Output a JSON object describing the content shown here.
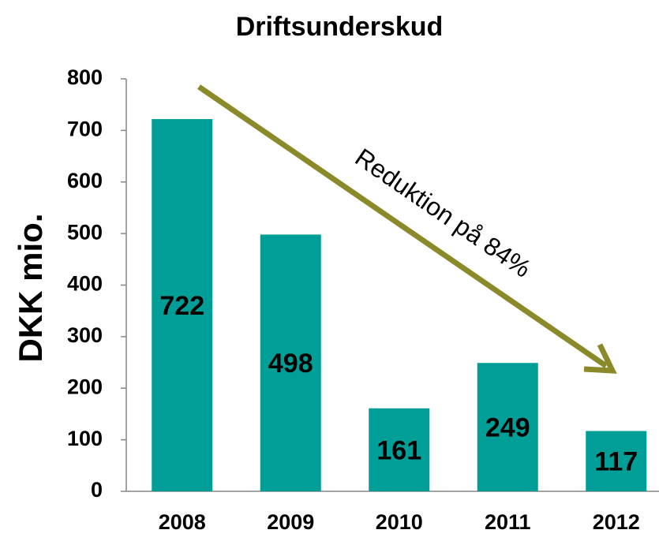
{
  "chart_data": {
    "type": "bar",
    "title": "Driftsunderskud",
    "y_label": "DKK mio.",
    "categories": [
      "2008",
      "2009",
      "2010",
      "2011",
      "2012"
    ],
    "values": [
      722,
      498,
      161,
      249,
      117
    ],
    "color": "#009e96",
    "ylim": [
      0,
      800
    ],
    "yticks": [
      0,
      100,
      200,
      300,
      400,
      500,
      600,
      700,
      800
    ],
    "grid": false,
    "annotation": "Reduktion på 84%",
    "annotation_color": "#8b8a2b"
  }
}
